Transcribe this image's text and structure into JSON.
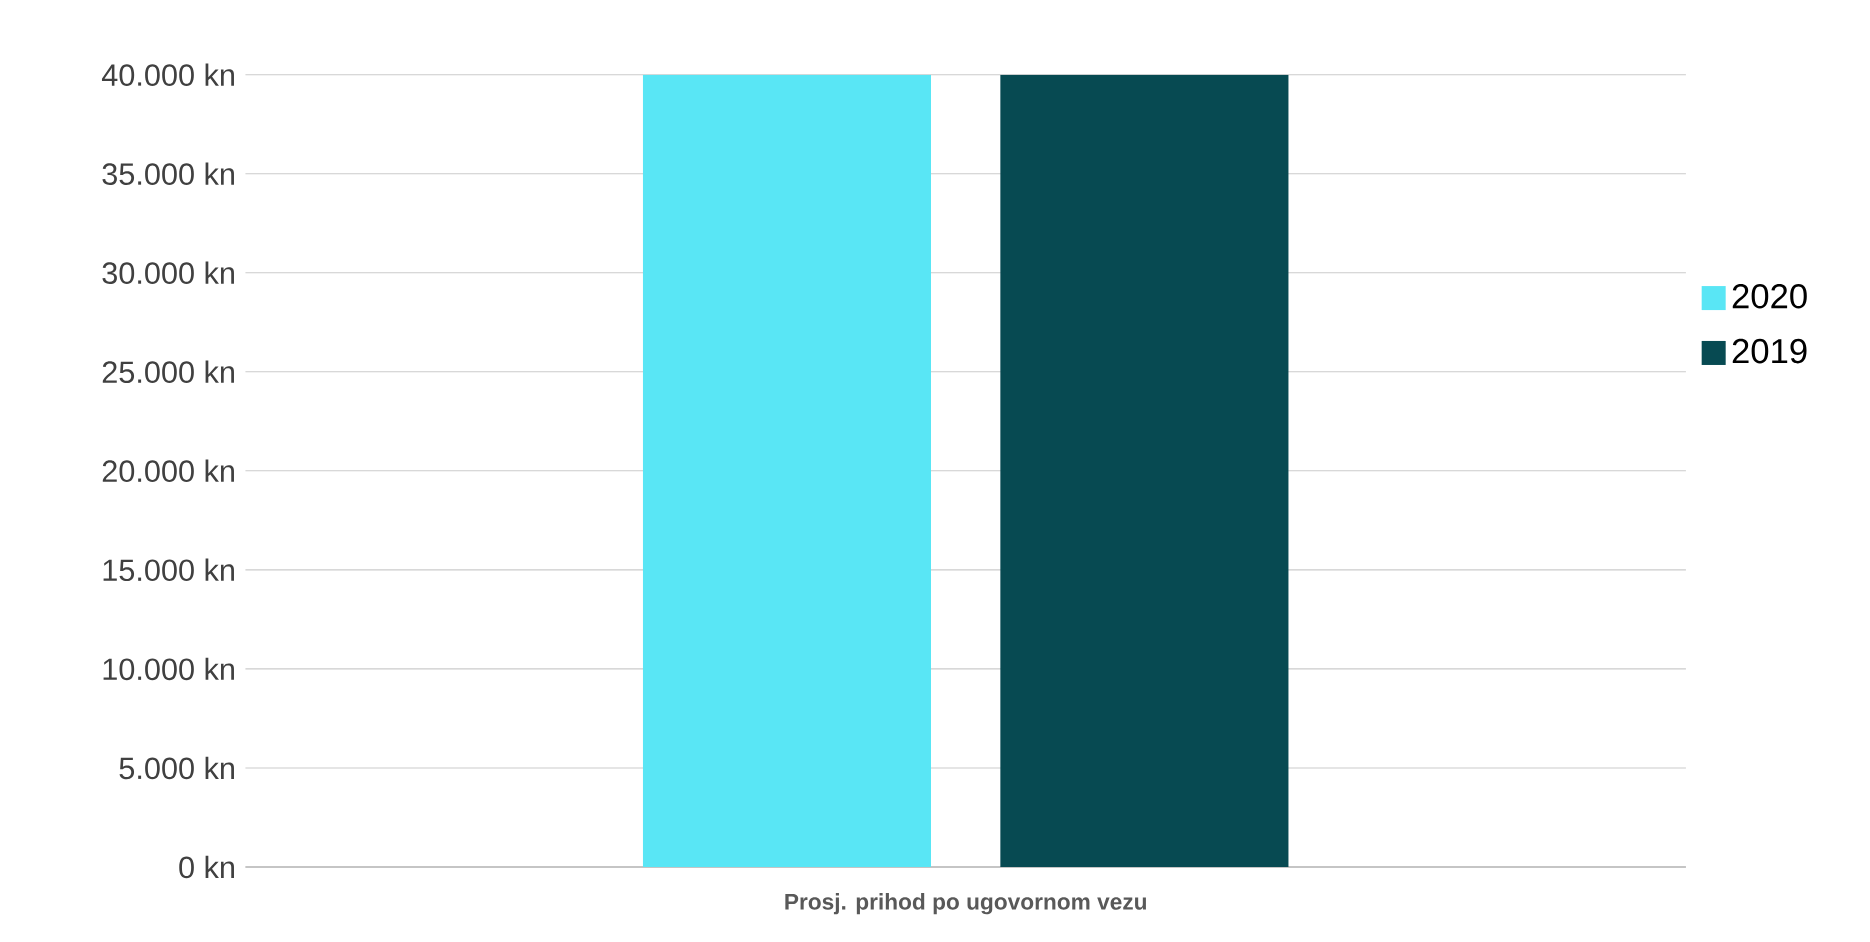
{
  "chart_data": {
    "type": "bar",
    "categories": [
      "Prosj. prihod po ugovornom vezu"
    ],
    "series": [
      {
        "name": "2020",
        "color": "#59e6f5",
        "values": [
          40000
        ]
      },
      {
        "name": "2019",
        "color": "#074a52",
        "values": [
          40000
        ]
      }
    ],
    "ylim": [
      0,
      40000
    ],
    "yticks": [
      {
        "value": 0,
        "label": "0 kn"
      },
      {
        "value": 5000,
        "label": "5.000 kn"
      },
      {
        "value": 10000,
        "label": "10.000 kn"
      },
      {
        "value": 15000,
        "label": "15.000 kn"
      },
      {
        "value": 20000,
        "label": "20.000 kn"
      },
      {
        "value": 25000,
        "label": "25.000 kn"
      },
      {
        "value": 30000,
        "label": "30.000 kn"
      },
      {
        "value": 35000,
        "label": "35.000 kn"
      },
      {
        "value": 40000,
        "label": "40.000 kn"
      }
    ],
    "grid": "y",
    "legend": "right"
  }
}
